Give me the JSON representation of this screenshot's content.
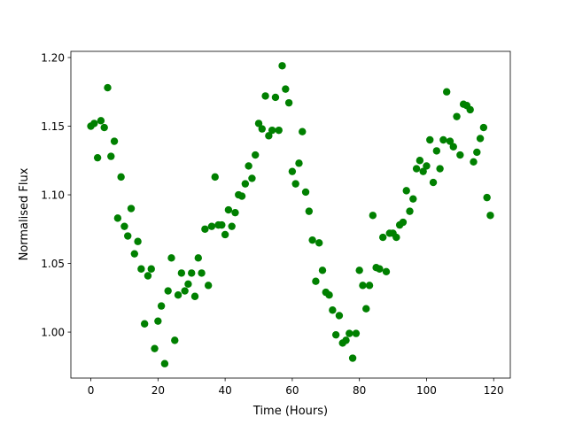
{
  "chart_data": {
    "type": "scatter",
    "title": "",
    "xlabel": "Time (Hours)",
    "ylabel": "Normalised Flux",
    "xlim": [
      -5.95,
      124.95
    ],
    "ylim": [
      0.9665,
      1.2045
    ],
    "xticks": [
      0,
      20,
      40,
      60,
      80,
      100,
      120
    ],
    "xtick_labels": [
      "0",
      "20",
      "40",
      "60",
      "80",
      "100",
      "120"
    ],
    "yticks": [
      1.0,
      1.05,
      1.1,
      1.15,
      1.2
    ],
    "ytick_labels": [
      "1.00",
      "1.05",
      "1.10",
      "1.15",
      "1.20"
    ],
    "grid": false,
    "marker_color": "#008000",
    "x": [
      0,
      1,
      2,
      3,
      4,
      5,
      6,
      7,
      8,
      9,
      10,
      11,
      12,
      13,
      14,
      15,
      16,
      17,
      18,
      19,
      20,
      21,
      22,
      23,
      24,
      25,
      26,
      27,
      28,
      29,
      30,
      31,
      32,
      33,
      34,
      35,
      36,
      37,
      38,
      39,
      40,
      41,
      42,
      43,
      44,
      45,
      46,
      47,
      48,
      49,
      50,
      51,
      52,
      53,
      54,
      55,
      56,
      57,
      58,
      59,
      60,
      61,
      62,
      63,
      64,
      65,
      66,
      67,
      68,
      69,
      70,
      71,
      72,
      73,
      74,
      75,
      76,
      77,
      78,
      79,
      80,
      81,
      82,
      83,
      84,
      85,
      86,
      87,
      88,
      89,
      90,
      91,
      92,
      93,
      94,
      95,
      96,
      97,
      98,
      99,
      100,
      101,
      102,
      103,
      104,
      105,
      106,
      107,
      108,
      109,
      110,
      111,
      112,
      113,
      114,
      115,
      116,
      117,
      118,
      119
    ],
    "y": [
      1.15,
      1.152,
      1.127,
      1.154,
      1.149,
      1.178,
      1.128,
      1.139,
      1.083,
      1.113,
      1.077,
      1.07,
      1.09,
      1.057,
      1.066,
      1.046,
      1.006,
      1.041,
      1.046,
      0.988,
      1.008,
      1.019,
      0.977,
      1.03,
      1.054,
      0.994,
      1.027,
      1.043,
      1.03,
      1.035,
      1.043,
      1.026,
      1.054,
      1.043,
      1.075,
      1.034,
      1.077,
      1.113,
      1.078,
      1.078,
      1.071,
      1.089,
      1.077,
      1.087,
      1.1,
      1.099,
      1.108,
      1.121,
      1.112,
      1.129,
      1.152,
      1.148,
      1.172,
      1.143,
      1.147,
      1.171,
      1.147,
      1.194,
      1.177,
      1.167,
      1.117,
      1.108,
      1.123,
      1.146,
      1.102,
      1.088,
      1.067,
      1.037,
      1.065,
      1.045,
      1.029,
      1.027,
      1.016,
      0.998,
      1.012,
      0.992,
      0.994,
      0.999,
      0.981,
      0.999,
      1.045,
      1.034,
      1.017,
      1.034,
      1.085,
      1.047,
      1.046,
      1.069,
      1.044,
      1.072,
      1.072,
      1.069,
      1.078,
      1.08,
      1.103,
      1.088,
      1.097,
      1.119,
      1.125,
      1.117,
      1.121,
      1.14,
      1.109,
      1.132,
      1.119,
      1.14,
      1.175,
      1.139,
      1.135,
      1.157,
      1.129,
      1.166,
      1.165,
      1.162,
      1.124,
      1.131,
      1.141,
      1.149,
      1.098,
      1.085
    ]
  }
}
